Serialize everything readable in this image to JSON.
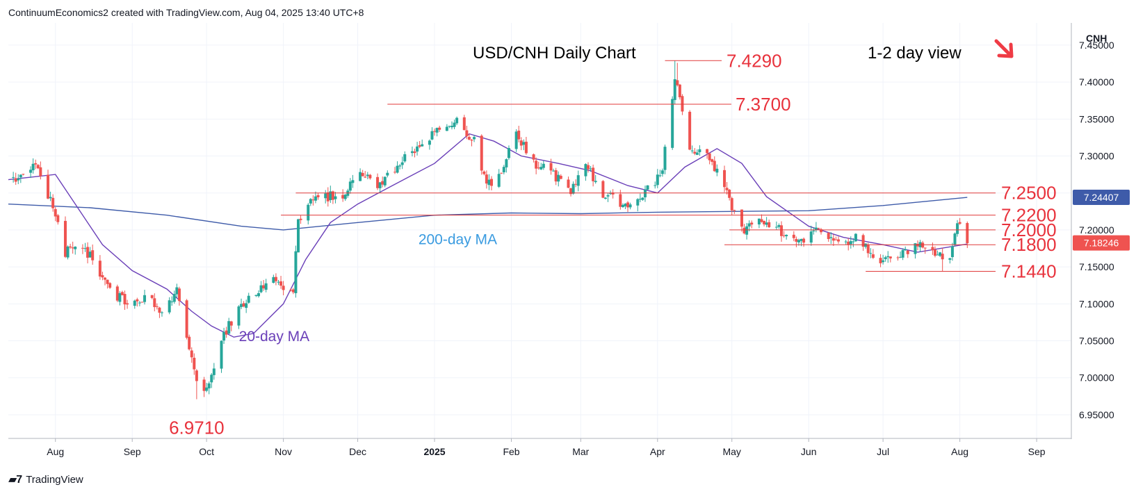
{
  "attribution": "ContinuumEconomics2 created with TradingView.com, Aug 04, 2025 13:40 UTC+8",
  "brand": "TradingView",
  "brand_icon": "tradingview-logo-icon",
  "colors": {
    "up": "#26a69a",
    "down": "#ef5350",
    "level_text": "#e8323c",
    "ma20": "#6a3fb8",
    "ma200": "#3e5ba9",
    "arrow": "#ef3b45",
    "line": "#e03a3a"
  },
  "chart_data": {
    "type": "candlestick",
    "title": "USD/CNH Daily Chart",
    "view": "1-2 day view",
    "view_arrow": "down-right",
    "currency_label": "CNH",
    "ylim": [
      6.918,
      7.48
    ],
    "y_ticks": [
      "7.45000",
      "7.40000",
      "7.35000",
      "7.30000",
      "7.25000",
      "7.20000",
      "7.15000",
      "7.10000",
      "7.05000",
      "7.00000",
      "6.95000"
    ],
    "x_ticks": [
      "Aug",
      "Sep",
      "Oct",
      "Nov",
      "Dec",
      "2025",
      "Feb",
      "Mar",
      "Apr",
      "May",
      "Jun",
      "Jul",
      "Aug",
      "Sep"
    ],
    "x_tick_dates": [
      "2024-08-01",
      "2024-09-01",
      "2024-10-01",
      "2024-11-01",
      "2024-12-01",
      "2025-01-01",
      "2025-02-01",
      "2025-03-01",
      "2025-04-01",
      "2025-05-01",
      "2025-06-01",
      "2025-07-01",
      "2025-08-01",
      "2025-09-01"
    ],
    "x_range": [
      "2024-07-13",
      "2025-09-15"
    ],
    "current_price": "7.18246",
    "ma200_last": "7.24407",
    "levels": [
      {
        "label": "7.4290",
        "value": 7.429,
        "from": "2025-04-04"
      },
      {
        "label": "7.3700",
        "value": 7.37,
        "from": "2024-12-13"
      },
      {
        "label": "7.2500",
        "value": 7.25,
        "from": "2024-11-06"
      },
      {
        "label": "7.2200",
        "value": 7.22,
        "from": "2024-10-31"
      },
      {
        "label": "7.2000",
        "value": 7.2,
        "from": "2025-04-30"
      },
      {
        "label": "7.1800",
        "value": 7.18,
        "from": "2025-04-28"
      },
      {
        "label": "7.1440",
        "value": 7.144,
        "from": "2025-06-24"
      },
      {
        "label": "6.9710",
        "value": 6.971,
        "from": "2024-09-27"
      }
    ],
    "annotations": [
      {
        "text": "200-day MA",
        "date": "2024-11-12",
        "value": 7.188
      },
      {
        "text": "20-day MA",
        "date": "2024-10-09",
        "value": 7.057
      }
    ],
    "anchors": [
      [
        "2024-07-15",
        7.27
      ],
      [
        "2024-07-24",
        7.29
      ],
      [
        "2024-07-31",
        7.23
      ],
      [
        "2024-08-05",
        7.17
      ],
      [
        "2024-08-12",
        7.18
      ],
      [
        "2024-08-23",
        7.12
      ],
      [
        "2024-08-30",
        7.1
      ],
      [
        "2024-09-06",
        7.11
      ],
      [
        "2024-09-13",
        7.09
      ],
      [
        "2024-09-19",
        7.12
      ],
      [
        "2024-09-26",
        7.01
      ],
      [
        "2024-09-30",
        6.978
      ],
      [
        "2024-10-08",
        7.06
      ],
      [
        "2024-10-18",
        7.11
      ],
      [
        "2024-10-28",
        7.13
      ],
      [
        "2024-11-05",
        7.12
      ],
      [
        "2024-11-07",
        7.21
      ],
      [
        "2024-11-13",
        7.24
      ],
      [
        "2024-11-26",
        7.25
      ],
      [
        "2024-12-02",
        7.28
      ],
      [
        "2024-12-10",
        7.26
      ],
      [
        "2024-12-20",
        7.3
      ],
      [
        "2024-12-31",
        7.33
      ],
      [
        "2025-01-10",
        7.35
      ],
      [
        "2025-01-17",
        7.32
      ],
      [
        "2025-01-22",
        7.26
      ],
      [
        "2025-01-27",
        7.27
      ],
      [
        "2025-02-03",
        7.33
      ],
      [
        "2025-02-10",
        7.29
      ],
      [
        "2025-02-17",
        7.28
      ],
      [
        "2025-02-25",
        7.25
      ],
      [
        "2025-03-03",
        7.29
      ],
      [
        "2025-03-10",
        7.25
      ],
      [
        "2025-03-19",
        7.23
      ],
      [
        "2025-03-27",
        7.25
      ],
      [
        "2025-04-03",
        7.28
      ],
      [
        "2025-04-08",
        7.41
      ],
      [
        "2025-04-14",
        7.31
      ],
      [
        "2025-04-22",
        7.3
      ],
      [
        "2025-04-30",
        7.24
      ],
      [
        "2025-05-05",
        7.2
      ],
      [
        "2025-05-12",
        7.21
      ],
      [
        "2025-05-20",
        7.2
      ],
      [
        "2025-05-28",
        7.18
      ],
      [
        "2025-06-03",
        7.2
      ],
      [
        "2025-06-12",
        7.18
      ],
      [
        "2025-06-20",
        7.19
      ],
      [
        "2025-06-30",
        7.16
      ],
      [
        "2025-07-08",
        7.17
      ],
      [
        "2025-07-17",
        7.18
      ],
      [
        "2025-07-24",
        7.165
      ],
      [
        "2025-07-28",
        7.155
      ],
      [
        "2025-07-31",
        7.21
      ],
      [
        "2025-08-04",
        7.182
      ]
    ],
    "ma20": [
      [
        "2024-07-13",
        7.268
      ],
      [
        "2024-08-01",
        7.275
      ],
      [
        "2024-08-10",
        7.23
      ],
      [
        "2024-08-20",
        7.18
      ],
      [
        "2024-09-01",
        7.145
      ],
      [
        "2024-09-15",
        7.12
      ],
      [
        "2024-09-25",
        7.09
      ],
      [
        "2024-10-03",
        7.07
      ],
      [
        "2024-10-12",
        7.055
      ],
      [
        "2024-10-20",
        7.06
      ],
      [
        "2024-11-01",
        7.1
      ],
      [
        "2024-11-10",
        7.16
      ],
      [
        "2024-11-20",
        7.21
      ],
      [
        "2024-12-01",
        7.235
      ],
      [
        "2024-12-15",
        7.26
      ],
      [
        "2025-01-01",
        7.29
      ],
      [
        "2025-01-15",
        7.33
      ],
      [
        "2025-01-25",
        7.32
      ],
      [
        "2025-02-05",
        7.3
      ],
      [
        "2025-02-20",
        7.29
      ],
      [
        "2025-03-05",
        7.28
      ],
      [
        "2025-03-20",
        7.26
      ],
      [
        "2025-04-01",
        7.25
      ],
      [
        "2025-04-12",
        7.285
      ],
      [
        "2025-04-25",
        7.31
      ],
      [
        "2025-05-05",
        7.29
      ],
      [
        "2025-05-15",
        7.245
      ],
      [
        "2025-06-01",
        7.205
      ],
      [
        "2025-06-15",
        7.19
      ],
      [
        "2025-07-01",
        7.18
      ],
      [
        "2025-07-15",
        7.17
      ],
      [
        "2025-08-04",
        7.181
      ]
    ],
    "ma200": [
      [
        "2024-07-13",
        7.235
      ],
      [
        "2024-08-15",
        7.23
      ],
      [
        "2024-09-15",
        7.22
      ],
      [
        "2024-10-15",
        7.205
      ],
      [
        "2024-11-01",
        7.2
      ],
      [
        "2024-12-01",
        7.21
      ],
      [
        "2025-01-01",
        7.22
      ],
      [
        "2025-02-01",
        7.223
      ],
      [
        "2025-03-01",
        7.222
      ],
      [
        "2025-04-01",
        7.224
      ],
      [
        "2025-05-01",
        7.225
      ],
      [
        "2025-06-01",
        7.226
      ],
      [
        "2025-07-01",
        7.233
      ],
      [
        "2025-08-04",
        7.244
      ]
    ]
  }
}
